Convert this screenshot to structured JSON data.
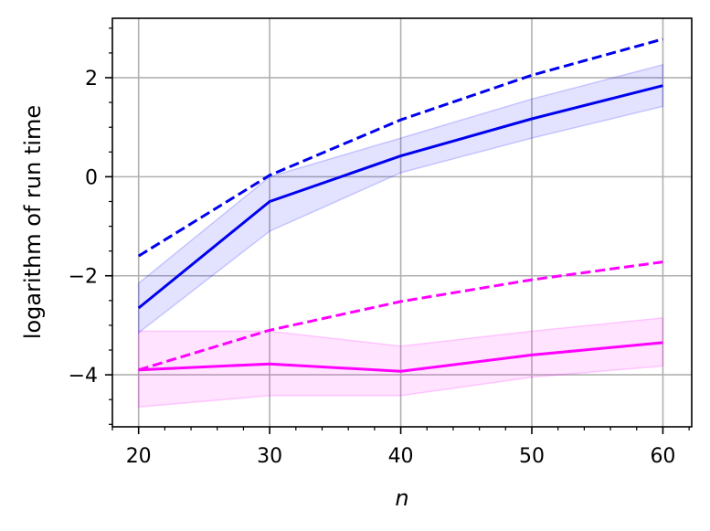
{
  "chart_data": {
    "type": "line",
    "title": "",
    "xlabel": "n",
    "ylabel": "logarithm of run time",
    "x": [
      20,
      30,
      40,
      50,
      60
    ],
    "xlim": [
      18,
      62.2
    ],
    "ylim": [
      -5.05,
      3.2
    ],
    "xticks": [
      20,
      30,
      40,
      50,
      60
    ],
    "xtick_labels": [
      "20",
      "30",
      "40",
      "50",
      "60"
    ],
    "yticks": [
      -4,
      -2,
      0,
      2
    ],
    "ytick_labels": [
      "−4",
      "−2",
      "0",
      "2"
    ],
    "grid": true,
    "legend": "none",
    "series": [
      {
        "color": "#0000ee",
        "style": "solid",
        "values": [
          -2.65,
          -0.5,
          0.42,
          1.17,
          1.84
        ],
        "band_lower": [
          -3.15,
          -1.1,
          0.08,
          0.78,
          1.42
        ],
        "band_upper": [
          -2.15,
          0.0,
          0.78,
          1.57,
          2.26
        ],
        "band_color": "#0000ff"
      },
      {
        "color": "#0000ee",
        "style": "dashed",
        "values": [
          -1.6,
          0.03,
          1.15,
          2.05,
          2.78
        ]
      },
      {
        "color": "#ff00ff",
        "style": "solid",
        "values": [
          -3.9,
          -3.78,
          -3.93,
          -3.6,
          -3.35
        ],
        "band_lower": [
          -4.65,
          -4.42,
          -4.42,
          -4.05,
          -3.82
        ],
        "band_upper": [
          -3.12,
          -3.12,
          -3.42,
          -3.12,
          -2.85
        ],
        "band_color": "#ff00ff"
      },
      {
        "color": "#ff00ff",
        "style": "dashed",
        "values": [
          -3.9,
          -3.1,
          -2.52,
          -2.08,
          -1.72
        ]
      }
    ]
  }
}
